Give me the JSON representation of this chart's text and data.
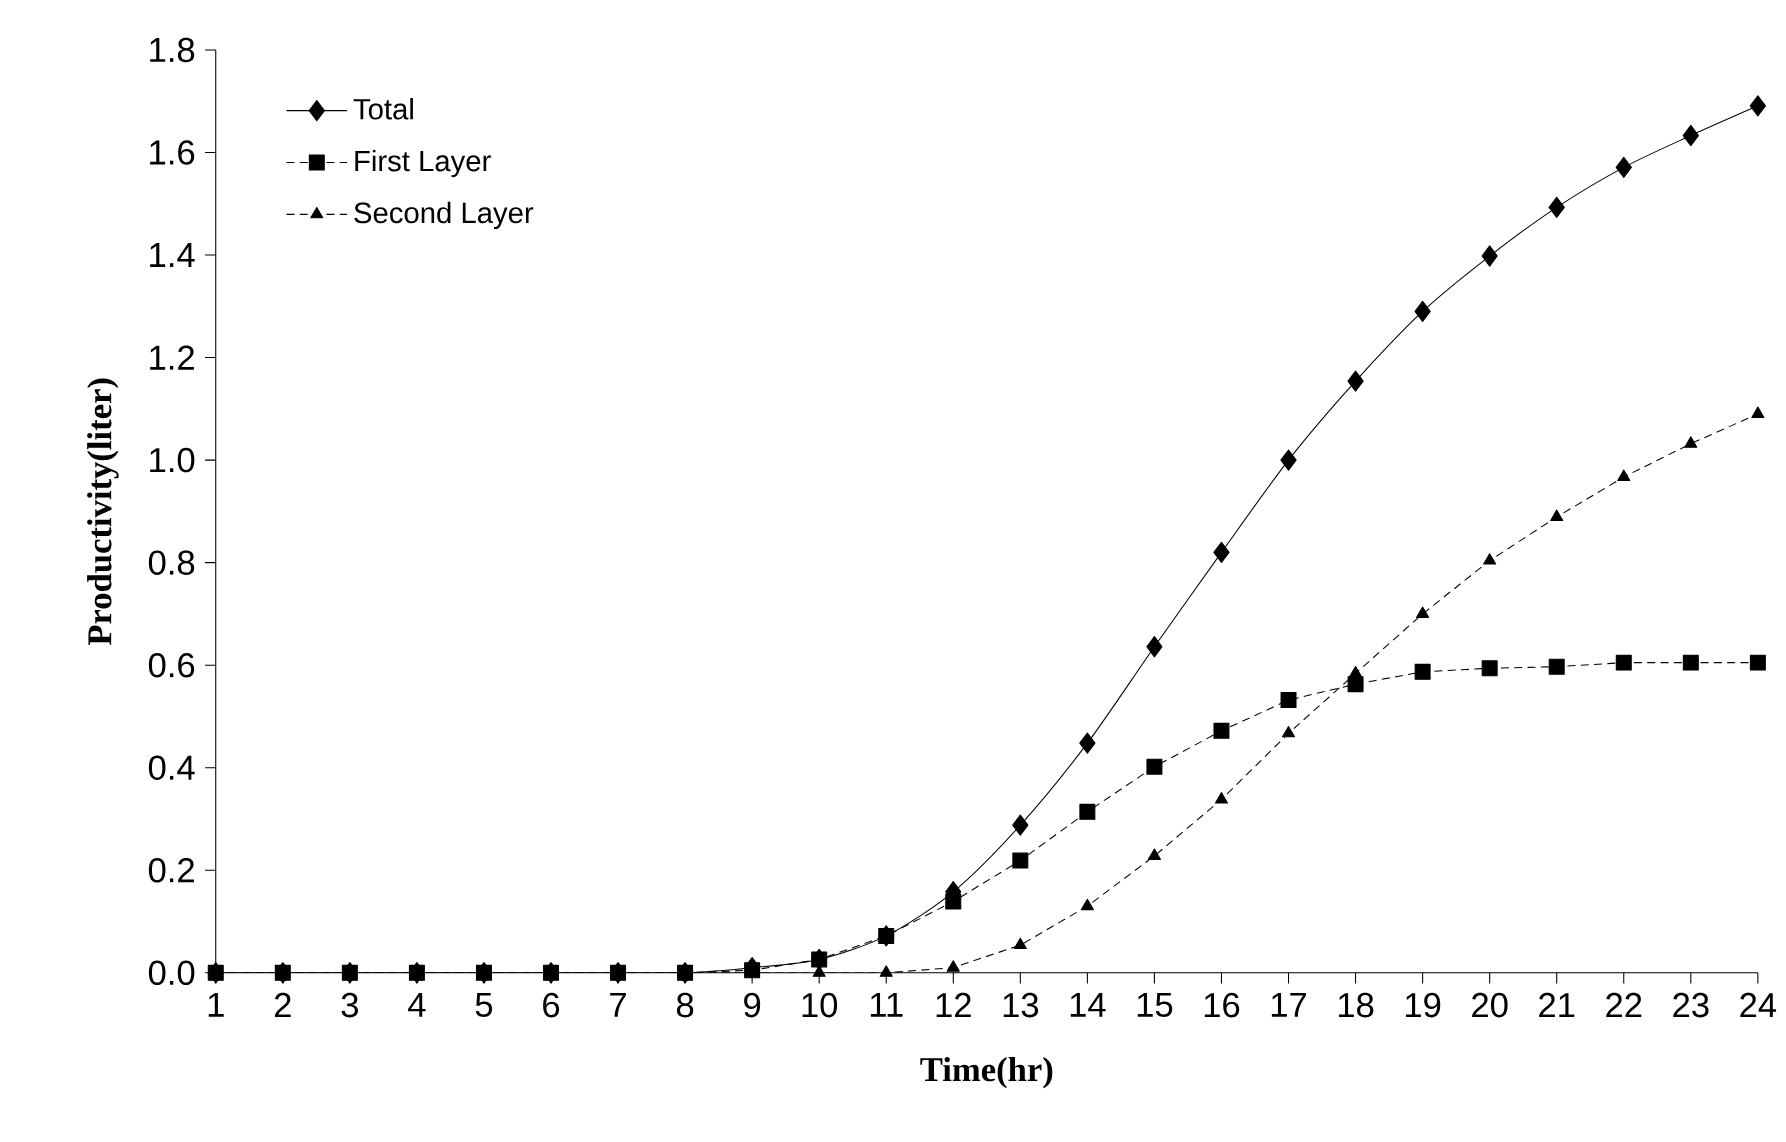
{
  "chart_data": {
    "type": "line",
    "xlabel": "Time(hr)",
    "ylabel": "Productivity(liter)",
    "x": [
      1,
      2,
      3,
      4,
      5,
      6,
      7,
      8,
      9,
      10,
      11,
      12,
      13,
      14,
      15,
      16,
      17,
      18,
      19,
      20,
      21,
      22,
      23,
      24
    ],
    "xlim": [
      1,
      24
    ],
    "xticks": [
      1,
      2,
      3,
      4,
      5,
      6,
      7,
      8,
      9,
      10,
      11,
      12,
      13,
      14,
      15,
      16,
      17,
      18,
      19,
      20,
      21,
      22,
      23,
      24
    ],
    "ylim": [
      0,
      1.8
    ],
    "yticks": [
      {
        "value": 0,
        "label": "0.0"
      },
      {
        "value": 0.2,
        "label": "0.2"
      },
      {
        "value": 0.4,
        "label": "0.4"
      },
      {
        "value": 0.6,
        "label": "0.6"
      },
      {
        "value": 0.8,
        "label": "0.8"
      },
      {
        "value": 1.0,
        "label": "1.0"
      },
      {
        "value": 1.2,
        "label": "1.2"
      },
      {
        "value": 1.4,
        "label": "1.4"
      },
      {
        "value": 1.6,
        "label": "1.6"
      },
      {
        "value": 1.8,
        "label": "1.8"
      }
    ],
    "grid": false,
    "legend": "top left",
    "series": [
      {
        "name": "Total",
        "color": "#000000",
        "marker": "diamond",
        "line_style": "solid",
        "values": [
          0,
          0,
          0,
          0,
          0,
          0,
          0,
          0,
          0.01,
          0.026,
          0.072,
          0.158,
          0.288,
          0.448,
          0.636,
          0.82,
          1.0,
          1.154,
          1.29,
          1.398,
          1.493,
          1.571,
          1.633,
          1.691
        ]
      },
      {
        "name": "First Layer",
        "color": "#000000",
        "marker": "square",
        "line_style": "dashed",
        "values": [
          0,
          0,
          0,
          0,
          0,
          0,
          0,
          0,
          0.005,
          0.026,
          0.072,
          0.139,
          0.219,
          0.314,
          0.402,
          0.472,
          0.532,
          0.563,
          0.587,
          0.594,
          0.597,
          0.605,
          0.605,
          0.605
        ]
      },
      {
        "name": "Second Layer",
        "color": "#000000",
        "marker": "triangle",
        "line_style": "dashed",
        "values": [
          0,
          0,
          0,
          0,
          0,
          0,
          0,
          0,
          0,
          0,
          0,
          0.01,
          0.054,
          0.13,
          0.228,
          0.338,
          0.467,
          0.584,
          0.7,
          0.804,
          0.889,
          0.967,
          1.032,
          1.09
        ]
      }
    ]
  }
}
